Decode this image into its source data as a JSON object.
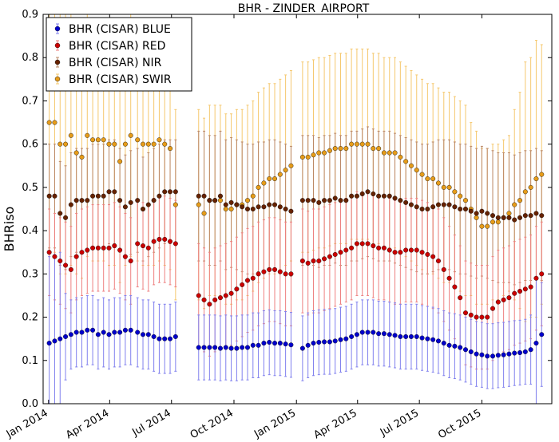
{
  "chart_data": {
    "type": "scatter",
    "title": "BHR - ZINDER_AIRPORT",
    "xlabel": "",
    "ylabel": "BHRiso",
    "ylim": [
      0.0,
      0.9
    ],
    "yticks": [
      "0.0",
      "0.1",
      "0.2",
      "0.3",
      "0.4",
      "0.5",
      "0.6",
      "0.7",
      "0.8",
      "0.9"
    ],
    "xlim": [
      "2013-12-24",
      "2016-01-12"
    ],
    "xticks": [
      {
        "date": "2014-01-01",
        "label": "Jan 2014"
      },
      {
        "date": "2014-04-01",
        "label": "Apr 2014"
      },
      {
        "date": "2014-07-01",
        "label": "Jul 2014"
      },
      {
        "date": "2014-10-01",
        "label": "Oct 2014"
      },
      {
        "date": "2015-01-01",
        "label": "Jan 2015"
      },
      {
        "date": "2015-04-01",
        "label": "Apr 2015"
      },
      {
        "date": "2015-07-01",
        "label": "Jul 2015"
      },
      {
        "date": "2015-10-01",
        "label": "Oct 2015"
      }
    ],
    "grid": false,
    "legend_position": "top-left",
    "x": [
      "2014-01-02",
      "2014-01-10",
      "2014-01-18",
      "2014-01-26",
      "2014-02-03",
      "2014-02-11",
      "2014-02-19",
      "2014-02-27",
      "2014-03-07",
      "2014-03-15",
      "2014-03-23",
      "2014-03-31",
      "2014-04-08",
      "2014-04-16",
      "2014-04-24",
      "2014-05-02",
      "2014-05-12",
      "2014-05-20",
      "2014-05-28",
      "2014-06-05",
      "2014-06-13",
      "2014-06-21",
      "2014-06-29",
      "2014-07-07",
      "2014-08-10",
      "2014-08-18",
      "2014-08-26",
      "2014-09-03",
      "2014-09-11",
      "2014-09-19",
      "2014-09-27",
      "2014-10-05",
      "2014-10-13",
      "2014-10-21",
      "2014-10-29",
      "2014-11-06",
      "2014-11-14",
      "2014-11-22",
      "2014-11-30",
      "2014-12-08",
      "2014-12-16",
      "2014-12-24",
      "2015-01-10",
      "2015-01-18",
      "2015-01-26",
      "2015-02-03",
      "2015-02-11",
      "2015-02-19",
      "2015-02-27",
      "2015-03-07",
      "2015-03-15",
      "2015-03-23",
      "2015-03-31",
      "2015-04-08",
      "2015-04-16",
      "2015-04-24",
      "2015-05-02",
      "2015-05-10",
      "2015-05-18",
      "2015-05-26",
      "2015-06-03",
      "2015-06-11",
      "2015-06-19",
      "2015-06-27",
      "2015-07-05",
      "2015-07-13",
      "2015-07-21",
      "2015-07-29",
      "2015-08-06",
      "2015-08-14",
      "2015-08-22",
      "2015-08-30",
      "2015-09-07",
      "2015-09-15",
      "2015-09-23",
      "2015-10-01",
      "2015-10-09",
      "2015-10-17",
      "2015-10-25",
      "2015-11-02",
      "2015-11-10",
      "2015-11-18",
      "2015-11-26",
      "2015-12-04",
      "2015-12-12",
      "2015-12-20",
      "2015-12-28"
    ],
    "series": [
      {
        "name": "BHR (CISAR) BLUE",
        "color": "#0000cc",
        "error_color": "#8080ee",
        "values": [
          0.14,
          0.145,
          0.15,
          0.155,
          0.16,
          0.165,
          0.165,
          0.17,
          0.17,
          0.16,
          0.165,
          0.16,
          0.165,
          0.165,
          0.17,
          0.17,
          0.165,
          0.16,
          0.16,
          0.155,
          0.15,
          0.15,
          0.15,
          0.155,
          0.13,
          0.13,
          0.13,
          0.13,
          0.128,
          0.13,
          0.128,
          0.128,
          0.13,
          0.13,
          0.135,
          0.135,
          0.14,
          0.142,
          0.14,
          0.14,
          0.138,
          0.136,
          0.128,
          0.135,
          0.14,
          0.142,
          0.143,
          0.143,
          0.145,
          0.148,
          0.15,
          0.155,
          0.16,
          0.165,
          0.165,
          0.165,
          0.162,
          0.162,
          0.16,
          0.158,
          0.155,
          0.155,
          0.155,
          0.155,
          0.152,
          0.15,
          0.148,
          0.145,
          0.14,
          0.135,
          0.133,
          0.13,
          0.125,
          0.12,
          0.115,
          0.113,
          0.11,
          0.11,
          0.112,
          0.113,
          0.115,
          0.117,
          0.118,
          0.12,
          0.125,
          0.14,
          0.16
        ],
        "errors": [
          0.2,
          0.2,
          0.2,
          0.1,
          0.08,
          0.08,
          0.08,
          0.08,
          0.08,
          0.08,
          0.08,
          0.08,
          0.08,
          0.08,
          0.08,
          0.08,
          0.08,
          0.08,
          0.08,
          0.08,
          0.08,
          0.08,
          0.08,
          0.08,
          0.075,
          0.075,
          0.075,
          0.075,
          0.075,
          0.075,
          0.075,
          0.075,
          0.075,
          0.075,
          0.075,
          0.075,
          0.075,
          0.075,
          0.075,
          0.075,
          0.075,
          0.075,
          0.075,
          0.075,
          0.075,
          0.075,
          0.075,
          0.075,
          0.075,
          0.075,
          0.075,
          0.075,
          0.075,
          0.075,
          0.075,
          0.075,
          0.075,
          0.075,
          0.075,
          0.075,
          0.075,
          0.075,
          0.075,
          0.075,
          0.075,
          0.075,
          0.075,
          0.075,
          0.075,
          0.075,
          0.075,
          0.075,
          0.075,
          0.075,
          0.075,
          0.075,
          0.075,
          0.075,
          0.075,
          0.075,
          0.075,
          0.075,
          0.075,
          0.075,
          0.08,
          0.15,
          0.12
        ]
      },
      {
        "name": "BHR (CISAR) RED",
        "color": "#cc0000",
        "error_color": "#ee8080",
        "values": [
          0.35,
          0.34,
          0.33,
          0.32,
          0.31,
          0.34,
          0.35,
          0.355,
          0.36,
          0.36,
          0.36,
          0.36,
          0.365,
          0.355,
          0.34,
          0.33,
          0.37,
          0.365,
          0.36,
          0.375,
          0.38,
          0.38,
          0.375,
          0.37,
          0.25,
          0.24,
          0.23,
          0.24,
          0.245,
          0.25,
          0.255,
          0.265,
          0.275,
          0.285,
          0.29,
          0.3,
          0.305,
          0.31,
          0.31,
          0.305,
          0.3,
          0.3,
          0.33,
          0.325,
          0.33,
          0.33,
          0.335,
          0.34,
          0.345,
          0.35,
          0.355,
          0.36,
          0.37,
          0.37,
          0.37,
          0.365,
          0.36,
          0.36,
          0.355,
          0.35,
          0.35,
          0.355,
          0.355,
          0.355,
          0.35,
          0.345,
          0.34,
          0.33,
          0.31,
          0.29,
          0.27,
          0.245,
          0.21,
          0.205,
          0.2,
          0.2,
          0.2,
          0.22,
          0.235,
          0.24,
          0.245,
          0.255,
          0.26,
          0.265,
          0.27,
          0.29,
          0.3
        ],
        "errors": [
          0.1,
          0.1,
          0.1,
          0.1,
          0.1,
          0.1,
          0.1,
          0.1,
          0.1,
          0.1,
          0.1,
          0.1,
          0.1,
          0.1,
          0.1,
          0.1,
          0.1,
          0.1,
          0.1,
          0.1,
          0.1,
          0.1,
          0.1,
          0.1,
          0.12,
          0.12,
          0.12,
          0.12,
          0.12,
          0.12,
          0.12,
          0.12,
          0.12,
          0.12,
          0.12,
          0.12,
          0.12,
          0.12,
          0.12,
          0.12,
          0.12,
          0.12,
          0.12,
          0.12,
          0.12,
          0.12,
          0.12,
          0.12,
          0.12,
          0.12,
          0.12,
          0.12,
          0.12,
          0.12,
          0.12,
          0.12,
          0.12,
          0.12,
          0.12,
          0.12,
          0.12,
          0.12,
          0.12,
          0.12,
          0.12,
          0.12,
          0.12,
          0.12,
          0.12,
          0.12,
          0.12,
          0.12,
          0.12,
          0.12,
          0.12,
          0.12,
          0.12,
          0.12,
          0.12,
          0.12,
          0.12,
          0.12,
          0.12,
          0.12,
          0.12,
          0.12,
          0.12
        ]
      },
      {
        "name": "BHR (CISAR) NIR",
        "color": "#662200",
        "error_color": "#bb8866",
        "values": [
          0.48,
          0.48,
          0.44,
          0.43,
          0.46,
          0.47,
          0.47,
          0.47,
          0.48,
          0.48,
          0.48,
          0.49,
          0.49,
          0.47,
          0.455,
          0.465,
          0.47,
          0.45,
          0.46,
          0.47,
          0.48,
          0.49,
          0.49,
          0.49,
          0.48,
          0.48,
          0.47,
          0.47,
          0.48,
          0.46,
          0.465,
          0.46,
          0.455,
          0.45,
          0.45,
          0.455,
          0.455,
          0.46,
          0.46,
          0.455,
          0.45,
          0.445,
          0.47,
          0.47,
          0.47,
          0.465,
          0.47,
          0.47,
          0.475,
          0.47,
          0.47,
          0.48,
          0.48,
          0.485,
          0.49,
          0.485,
          0.48,
          0.48,
          0.48,
          0.475,
          0.47,
          0.465,
          0.46,
          0.455,
          0.45,
          0.45,
          0.455,
          0.46,
          0.46,
          0.46,
          0.455,
          0.45,
          0.45,
          0.445,
          0.44,
          0.445,
          0.44,
          0.435,
          0.43,
          0.43,
          0.43,
          0.425,
          0.43,
          0.435,
          0.435,
          0.44,
          0.435
        ],
        "errors": [
          0.12,
          0.12,
          0.12,
          0.12,
          0.12,
          0.12,
          0.12,
          0.12,
          0.12,
          0.12,
          0.12,
          0.12,
          0.12,
          0.12,
          0.12,
          0.12,
          0.12,
          0.12,
          0.12,
          0.12,
          0.12,
          0.12,
          0.12,
          0.12,
          0.15,
          0.15,
          0.15,
          0.15,
          0.15,
          0.15,
          0.15,
          0.15,
          0.15,
          0.15,
          0.15,
          0.15,
          0.15,
          0.15,
          0.15,
          0.15,
          0.15,
          0.15,
          0.15,
          0.15,
          0.15,
          0.15,
          0.15,
          0.15,
          0.15,
          0.15,
          0.15,
          0.15,
          0.15,
          0.15,
          0.15,
          0.15,
          0.15,
          0.15,
          0.15,
          0.15,
          0.15,
          0.15,
          0.15,
          0.15,
          0.15,
          0.15,
          0.15,
          0.15,
          0.15,
          0.15,
          0.15,
          0.15,
          0.15,
          0.15,
          0.15,
          0.15,
          0.15,
          0.15,
          0.15,
          0.15,
          0.15,
          0.15,
          0.15,
          0.15,
          0.15,
          0.15,
          0.15
        ]
      },
      {
        "name": "BHR (CISAR) SWIR",
        "color": "#e69c1a",
        "error_color": "#f5c86e",
        "values": [
          0.65,
          0.65,
          0.6,
          0.6,
          0.62,
          0.58,
          0.57,
          0.62,
          0.61,
          0.61,
          0.61,
          0.6,
          0.6,
          0.56,
          0.6,
          0.62,
          0.61,
          0.6,
          0.6,
          0.6,
          0.61,
          0.6,
          0.59,
          0.46,
          0.46,
          0.44,
          0.47,
          0.47,
          0.47,
          0.45,
          0.45,
          0.46,
          0.46,
          0.47,
          0.48,
          0.5,
          0.51,
          0.52,
          0.52,
          0.53,
          0.54,
          0.55,
          0.57,
          0.57,
          0.575,
          0.58,
          0.58,
          0.585,
          0.59,
          0.59,
          0.59,
          0.6,
          0.6,
          0.6,
          0.6,
          0.59,
          0.59,
          0.58,
          0.58,
          0.58,
          0.57,
          0.56,
          0.55,
          0.54,
          0.53,
          0.52,
          0.52,
          0.51,
          0.5,
          0.5,
          0.49,
          0.48,
          0.47,
          0.45,
          0.43,
          0.41,
          0.41,
          0.42,
          0.42,
          0.43,
          0.44,
          0.46,
          0.47,
          0.49,
          0.5,
          0.52,
          0.53
        ],
        "errors": [
          0.3,
          0.3,
          0.3,
          0.3,
          0.3,
          0.28,
          0.28,
          0.28,
          0.28,
          0.28,
          0.28,
          0.28,
          0.28,
          0.28,
          0.28,
          0.28,
          0.28,
          0.28,
          0.28,
          0.28,
          0.28,
          0.28,
          0.28,
          0.22,
          0.22,
          0.22,
          0.22,
          0.22,
          0.22,
          0.22,
          0.22,
          0.22,
          0.22,
          0.22,
          0.22,
          0.22,
          0.22,
          0.22,
          0.22,
          0.22,
          0.22,
          0.22,
          0.22,
          0.22,
          0.22,
          0.22,
          0.22,
          0.22,
          0.22,
          0.22,
          0.22,
          0.22,
          0.22,
          0.22,
          0.22,
          0.22,
          0.22,
          0.22,
          0.22,
          0.22,
          0.22,
          0.22,
          0.22,
          0.22,
          0.22,
          0.22,
          0.22,
          0.22,
          0.22,
          0.22,
          0.22,
          0.22,
          0.22,
          0.2,
          0.2,
          0.18,
          0.18,
          0.18,
          0.18,
          0.18,
          0.18,
          0.22,
          0.25,
          0.3,
          0.3,
          0.32,
          0.3
        ]
      }
    ]
  }
}
